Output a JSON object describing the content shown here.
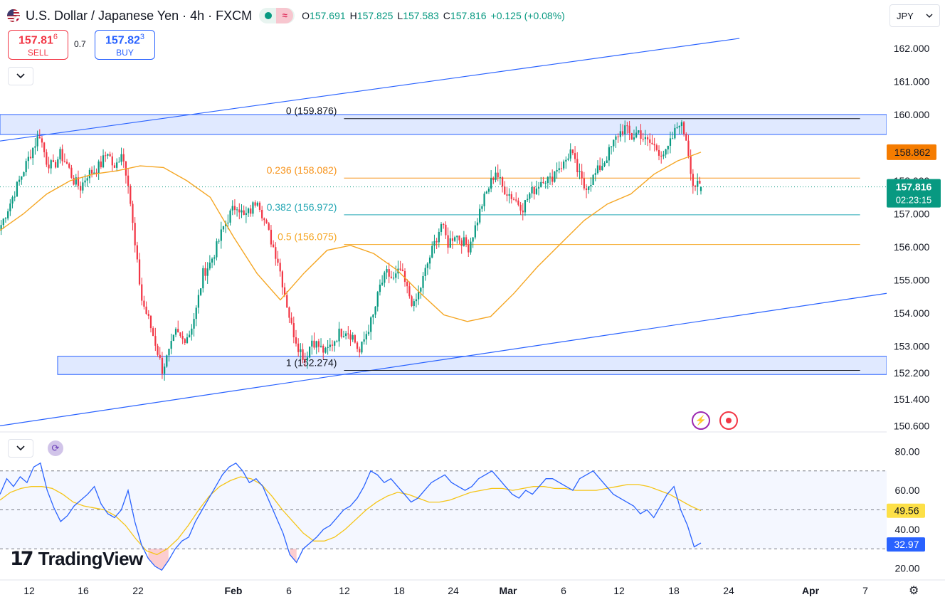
{
  "header": {
    "title": "U.S. Dollar / Japanese Yen · 4h · FXCM",
    "open_label": "O",
    "open": "157.691",
    "high_label": "H",
    "high": "157.825",
    "low_label": "L",
    "low": "157.583",
    "close_label": "C",
    "close": "157.816",
    "change": "+0.125 (+0.08%)"
  },
  "trade": {
    "sell_price": "157.81",
    "sell_sup": "6",
    "sell_label": "SELL",
    "spread": "0.7",
    "buy_price": "157.82",
    "buy_sup": "3",
    "buy_label": "BUY"
  },
  "currency_select": {
    "value": "JPY"
  },
  "branding": {
    "logo_text": "TradingView"
  },
  "icons": {
    "collapse": "chevron-down-icon",
    "bolt": "lightning-icon",
    "record": "record-icon",
    "settings": "gear-icon",
    "indicator": "refresh-icon",
    "flags": "usd-jpy-flag-icon"
  },
  "colors": {
    "up": "#089981",
    "down": "#f23645",
    "fib_0": "#131722",
    "fib_0236": "#f7931a",
    "fib_0382": "#22a6b3",
    "fib_05": "#f5a623",
    "ema": "#f5a623",
    "channel": "#2962ff",
    "zone_fill": "#dbe5ff",
    "rsi": "#2962ff",
    "rsi_ma": "#f5c518",
    "price_tag": "#089981",
    "ema_tag": "#f57c00",
    "rsi_ma_tag": "#fde047",
    "rsi_tag": "#2962ff"
  },
  "chart_data": {
    "type": "candlestick",
    "symbol": "USDJPY",
    "interval": "4h",
    "ylim": [
      150.5,
      162.6
    ],
    "price_axis_ticks": [
      "162.000",
      "161.000",
      "160.000",
      "158.000",
      "157.000",
      "156.000",
      "155.000",
      "154.000",
      "153.000",
      "152.200",
      "151.400",
      "150.600"
    ],
    "time_axis_ticks": [
      "12",
      "16",
      "22",
      "Feb",
      "6",
      "12",
      "18",
      "24",
      "Mar",
      "6",
      "12",
      "18",
      "24",
      "Apr",
      "7"
    ],
    "price_path": [
      156.5,
      157.0,
      157.5,
      158.0,
      158.5,
      159.0,
      159.4,
      158.6,
      158.4,
      158.8,
      158.5,
      158.0,
      157.8,
      158.2,
      158.3,
      158.5,
      158.9,
      158.3,
      158.9,
      158.0,
      156.0,
      154.4,
      153.8,
      153.1,
      152.3,
      152.8,
      153.4,
      153.2,
      153.4,
      154.1,
      155.2,
      155.5,
      156.0,
      156.6,
      157.0,
      157.3,
      156.9,
      157.1,
      157.5,
      156.8,
      156.2,
      155.6,
      154.6,
      153.6,
      153.0,
      152.6,
      153.2,
      153.0,
      152.8,
      153.1,
      153.4,
      153.5,
      153.3,
      152.8,
      153.4,
      153.9,
      154.8,
      155.2,
      155.0,
      155.3,
      154.7,
      154.2,
      154.8,
      155.5,
      156.1,
      156.7,
      156.1,
      156.4,
      156.2,
      156.0,
      156.6,
      157.3,
      157.8,
      158.3,
      157.8,
      157.6,
      157.4,
      157.2,
      157.6,
      157.8,
      158.1,
      158.0,
      158.4,
      158.5,
      158.9,
      158.3,
      157.8,
      158.0,
      158.3,
      158.6,
      159.0,
      159.4,
      159.6,
      159.3,
      159.5,
      159.2,
      159.1,
      158.9,
      158.8,
      159.3,
      159.8,
      159.3,
      157.9,
      157.8
    ],
    "last_candle": {
      "open": 157.691,
      "high": 157.825,
      "low": 157.583,
      "close": 157.816
    },
    "ema_path": [
      156.5,
      157.0,
      157.6,
      158.0,
      158.2,
      158.3,
      158.45,
      158.4,
      158.0,
      157.5,
      156.3,
      155.2,
      154.4,
      155.2,
      155.9,
      156.05,
      155.8,
      155.3,
      154.6,
      153.95,
      153.75,
      153.9,
      154.6,
      155.4,
      156.1,
      156.8,
      157.3,
      157.6,
      158.2,
      158.6,
      158.862
    ],
    "channel_upper": {
      "from": [
        0.0,
        159.2
      ],
      "to": [
        0.834,
        162.3
      ]
    },
    "channel_lower": {
      "from": [
        0.0,
        150.6
      ],
      "to": [
        1.0,
        154.6
      ]
    },
    "zones": [
      {
        "from": 0.0,
        "to": 1.0,
        "low": 159.4,
        "high": 160.0
      },
      {
        "from": 0.065,
        "to": 1.0,
        "low": 152.15,
        "high": 152.7
      }
    ],
    "fibonacci": [
      {
        "label": "0 (159.876)",
        "value": 159.876
      },
      {
        "label": "0.236 (158.082)",
        "value": 158.082
      },
      {
        "label": "0.382 (156.972)",
        "value": 156.972
      },
      {
        "label": "0.5 (156.075)",
        "value": 156.075
      },
      {
        "label": "1 (152.274)",
        "value": 152.274
      }
    ],
    "fib_span": [
      0.388,
      0.97
    ],
    "price_tags": [
      {
        "label": "158.862",
        "value": 158.862,
        "kind": "ema"
      },
      {
        "label": "157.816",
        "sub": "02:23:15",
        "value": 157.816,
        "kind": "price"
      }
    ],
    "rsi": {
      "ylim": [
        14,
        86
      ],
      "axis_ticks": [
        "80.00",
        "60.00",
        "40.00",
        "20.00"
      ],
      "bands": [
        30,
        50,
        70
      ],
      "rsi_path": [
        58,
        66,
        62,
        67,
        64,
        72,
        74,
        60,
        51,
        44,
        47,
        52,
        55,
        58,
        62,
        53,
        48,
        46,
        50,
        60,
        44,
        32,
        25,
        21,
        19,
        24,
        30,
        34,
        36,
        44,
        50,
        56,
        62,
        68,
        72,
        74,
        70,
        64,
        66,
        62,
        54,
        46,
        38,
        27,
        23,
        30,
        33,
        36,
        40,
        42,
        46,
        50,
        52,
        56,
        62,
        70,
        68,
        64,
        66,
        62,
        58,
        54,
        56,
        60,
        64,
        66,
        68,
        64,
        62,
        60,
        62,
        66,
        68,
        70,
        66,
        62,
        58,
        56,
        60,
        58,
        62,
        66,
        66,
        64,
        62,
        60,
        66,
        68,
        70,
        66,
        62,
        58,
        56,
        54,
        52,
        48,
        50,
        46,
        52,
        58,
        62,
        50,
        42,
        31,
        32.97
      ],
      "ma_path": [
        55,
        59,
        61,
        62,
        62,
        61,
        58,
        54,
        52,
        51,
        50,
        47,
        42,
        35,
        29,
        27,
        30,
        35,
        42,
        50,
        57,
        62,
        65,
        67,
        66,
        63,
        57,
        50,
        44,
        38,
        34,
        34,
        36,
        40,
        45,
        50,
        54,
        57,
        59,
        58,
        56,
        54,
        54,
        55,
        57,
        59,
        60,
        61,
        61,
        60,
        61,
        62,
        62,
        61,
        61,
        60,
        60,
        60,
        61,
        62,
        63,
        63,
        62,
        60,
        58,
        55,
        52,
        49.56
      ],
      "last_rsi": "32.97",
      "last_ma": "49.56"
    }
  }
}
